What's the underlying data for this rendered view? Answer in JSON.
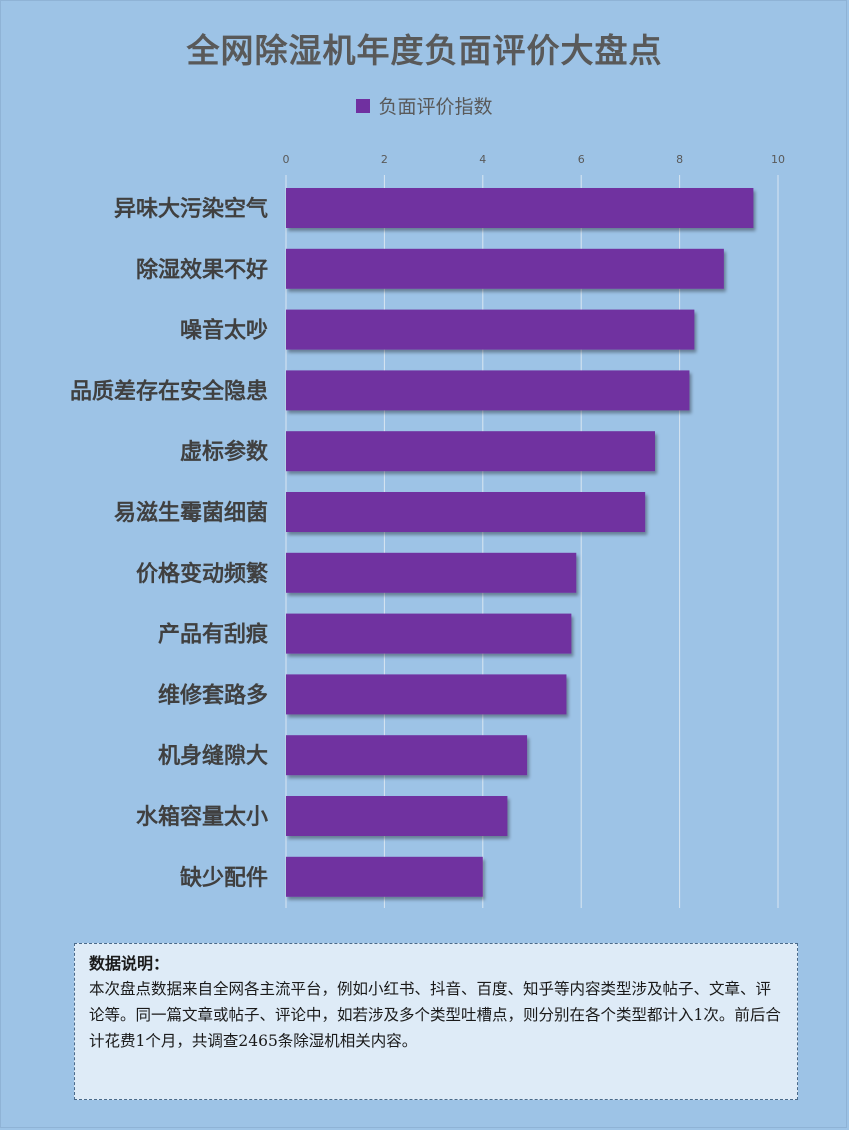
{
  "chart_data": {
    "type": "bar",
    "orientation": "horizontal",
    "title": "全网除湿机年度负面评价大盘点",
    "series": [
      {
        "name": "负面评价指数",
        "color": "#7030a0",
        "values": [
          9.5,
          8.9,
          8.3,
          8.2,
          7.5,
          7.3,
          5.9,
          5.8,
          5.7,
          4.9,
          4.5,
          4.0
        ]
      }
    ],
    "categories": [
      "异味大污染空气",
      "除湿效果不好",
      "噪音太吵",
      "品质差存在安全隐患",
      "虚标参数",
      "易滋生霉菌细菌",
      "价格变动频繁",
      "产品有刮痕",
      "维修套路多",
      "机身缝隙大",
      "水箱容量太小",
      "缺少配件"
    ],
    "xlim": [
      0,
      10
    ],
    "xticks": [
      "0",
      "2",
      "4",
      "6",
      "8",
      "10"
    ],
    "xaxis_position": "top",
    "grid": true,
    "legend_position": "top-center"
  },
  "note": {
    "heading": "数据说明：",
    "body": "本次盘点数据来自全网各主流平台，例如小红书、抖音、百度、知乎等内容类型涉及帖子、文章、评论等。同一篇文章或帖子、评论中，如若涉及多个类型吐槽点，则分别在各个类型都计入1次。前后合计花费1个月，共调查2465条除湿机相关内容。"
  },
  "colors": {
    "background": "#9dc3e6",
    "bar": "#7030a0",
    "note_background": "#deebf7"
  }
}
